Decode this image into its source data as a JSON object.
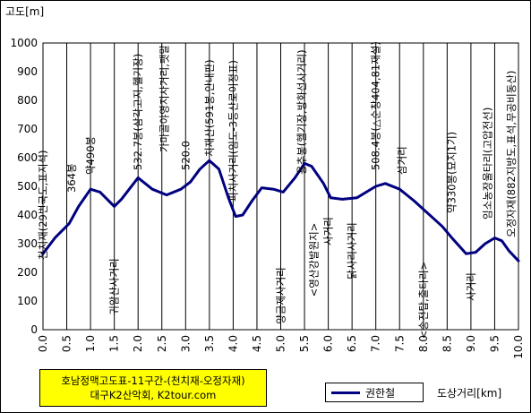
{
  "chart_data": {
    "type": "line",
    "ylabel": "고도[m]",
    "xlabel": "도상거리[km]",
    "xlim": [
      0,
      10
    ],
    "ylim": [
      0,
      1000
    ],
    "x_ticks": [
      "0.0",
      "0.5",
      "1.0",
      "1.5",
      "2.0",
      "2.5",
      "3.0",
      "3.5",
      "4.0",
      "4.5",
      "5.0",
      "5.5",
      "6.0",
      "6.5",
      "7.0",
      "7.5",
      "8.0",
      "8.5",
      "9.0",
      "9.5",
      "10.0"
    ],
    "y_ticks": [
      "0",
      "100",
      "200",
      "300",
      "400",
      "500",
      "600",
      "700",
      "800",
      "900",
      "1000"
    ],
    "grid": "vertical",
    "legend": "bottom",
    "series": [
      {
        "name": "권한철",
        "color": "#000080",
        "x": [
          0,
          0.25,
          0.55,
          0.75,
          1.0,
          1.2,
          1.5,
          1.65,
          2.0,
          2.3,
          2.6,
          2.9,
          3.1,
          3.3,
          3.5,
          3.7,
          3.9,
          4.05,
          4.2,
          4.4,
          4.6,
          4.85,
          5.05,
          5.3,
          5.5,
          5.65,
          5.9,
          6.05,
          6.3,
          6.6,
          6.8,
          7.0,
          7.2,
          7.5,
          7.8,
          8.2,
          8.4,
          8.6,
          8.9,
          9.1,
          9.3,
          9.5,
          9.65,
          9.8,
          10.0
        ],
        "y": [
          265,
          320,
          370,
          430,
          490,
          480,
          430,
          455,
          530,
          490,
          470,
          490,
          515,
          560,
          590,
          560,
          460,
          395,
          400,
          450,
          495,
          490,
          480,
          530,
          580,
          570,
          510,
          460,
          455,
          460,
          480,
          500,
          510,
          490,
          450,
          390,
          360,
          320,
          265,
          270,
          300,
          320,
          310,
          275,
          240
        ]
      }
    ],
    "annotations": [
      {
        "x": 0.0,
        "text": "천치재(29번국도,표지석)"
      },
      {
        "x": 0.6,
        "text": "364봉"
      },
      {
        "x": 1.0,
        "text": "약490봉"
      },
      {
        "x": 1.5,
        "text": "귀암산사거리"
      },
      {
        "x": 2.0,
        "text": "532.7봉(삼각고지,헬기장)"
      },
      {
        "x": 2.55,
        "text": "가마골야영지사거리,팻말"
      },
      {
        "x": 3.0,
        "text": "520.0"
      },
      {
        "x": 3.5,
        "text": "치재산(591봉,안내판)"
      },
      {
        "x": 4.0,
        "text": "피치사거리(임도-3등산로이정표)"
      },
      {
        "x": 5.0,
        "text": "양금제사거리"
      },
      {
        "x": 5.5,
        "text": "용추봉(헬기장,방화선사거리)"
      },
      {
        "x": 5.55,
        "text": "<영산강발원지>"
      },
      {
        "x": 6.0,
        "text": "사거리"
      },
      {
        "x": 6.5,
        "text": "닭사리사거리"
      },
      {
        "x": 7.0,
        "text": "508.4봉(△순창404,81재설)"
      },
      {
        "x": 7.55,
        "text": "삼거리"
      },
      {
        "x": 8.0,
        "text": "<송전탑,출타리>"
      },
      {
        "x": 8.6,
        "text": "약330봉(묘지1기)"
      },
      {
        "x": 9.0,
        "text": "사거리"
      },
      {
        "x": 9.35,
        "text": "임소농장울타리(고압전선)"
      },
      {
        "x": 9.85,
        "text": "오정자재(882지방도,표석,무공비동산)"
      }
    ],
    "title_lines": [
      "호남정맥고도표-11구간-(천치재-오정자재)",
      "대구K2산악회, K2tour.com"
    ]
  }
}
